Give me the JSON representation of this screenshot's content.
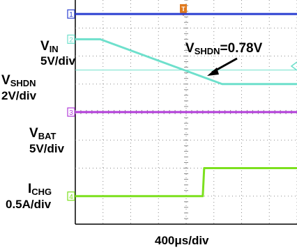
{
  "chart_data": {
    "type": "line",
    "title": "",
    "xlabel": "400μs/div",
    "grid": true,
    "divisions": {
      "x": 8,
      "y": 8
    },
    "x_unit": "div",
    "series": [
      {
        "name": "VIN",
        "scale": "5V/div",
        "channel": "1",
        "color": "#2B3FD1",
        "x": [
          0,
          10
        ],
        "values": [
          7.5,
          7.5
        ]
      },
      {
        "name": "VSHDN",
        "scale": "2V/div",
        "channel": "2",
        "color": "#6EE0CC",
        "x": [
          0,
          0.9,
          5.3,
          10
        ],
        "values": [
          6.6,
          6.6,
          5.0,
          5.0
        ]
      },
      {
        "name": "VBAT",
        "scale": "5V/div",
        "channel": "3",
        "color": "#B23DD9",
        "x": [
          0,
          10
        ],
        "values": [
          4.0,
          4.0
        ]
      },
      {
        "name": "ICHG",
        "scale": "0.5A/div",
        "channel": "4",
        "color": "#7CE01E",
        "x": [
          0,
          4.6,
          4.65,
          10
        ],
        "values": [
          1.0,
          1.0,
          2.0,
          2.0
        ]
      }
    ],
    "annotations": [
      {
        "text_main": "V",
        "text_sub": "SHDN",
        "text_value": "=0.78V"
      }
    ]
  },
  "labels": [
    {
      "main": "V",
      "sub": "IN",
      "scale": "5V/div"
    },
    {
      "main": "V",
      "sub": "SHDN",
      "scale": "2V/div"
    },
    {
      "main": "V",
      "sub": "BAT",
      "scale": "5V/div"
    },
    {
      "main": "I",
      "sub": "CHG",
      "scale": "0.5A/div"
    }
  ],
  "markers": [
    "1",
    "2",
    "3",
    "4"
  ],
  "trigger_marker": "T"
}
